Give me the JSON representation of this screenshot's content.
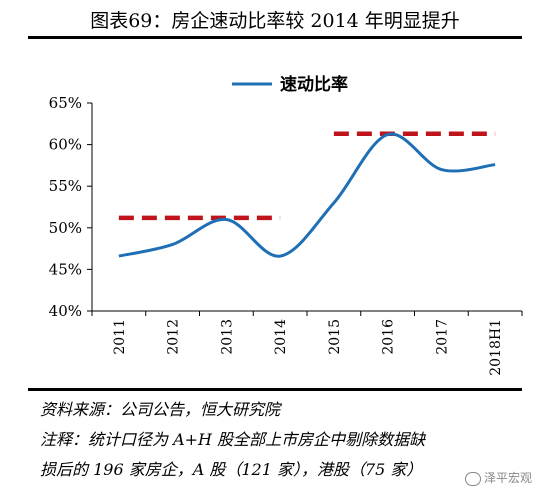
{
  "header": {
    "title": "图表69：房企速动比率较 2014 年明显提升"
  },
  "chart_data": {
    "type": "line",
    "title": "",
    "xlabel": "",
    "ylabel": "",
    "categories": [
      "2011",
      "2012",
      "2013",
      "2014",
      "2015",
      "2016",
      "2017",
      "2018H1"
    ],
    "series": [
      {
        "name": "速动比率",
        "values": [
          46.6,
          48.0,
          51.0,
          46.6,
          53.0,
          61.2,
          57.0,
          57.6
        ],
        "color": "#1f6fb5"
      }
    ],
    "reference_lines": [
      {
        "value": 51.2,
        "from": "2011",
        "to": "2014",
        "color": "#c0141d",
        "style": "dashed"
      },
      {
        "value": 61.3,
        "from": "2015",
        "to": "2018H1",
        "color": "#c0141d",
        "style": "dashed"
      }
    ],
    "yticks": [
      "40%",
      "45%",
      "50%",
      "55%",
      "60%",
      "65%"
    ],
    "ylim": [
      40,
      65
    ],
    "grid": false,
    "legend": "top-center"
  },
  "notes": {
    "source": "资料来源：公司公告，恒大研究院",
    "remark_line1": "注释：统计口径为 A+H 股全部上市房企中剔除数据缺",
    "remark_line2": "损后的 196 家房企，A 股（121 家），港股（75 家）"
  },
  "watermark": {
    "text": "泽平宏观"
  }
}
